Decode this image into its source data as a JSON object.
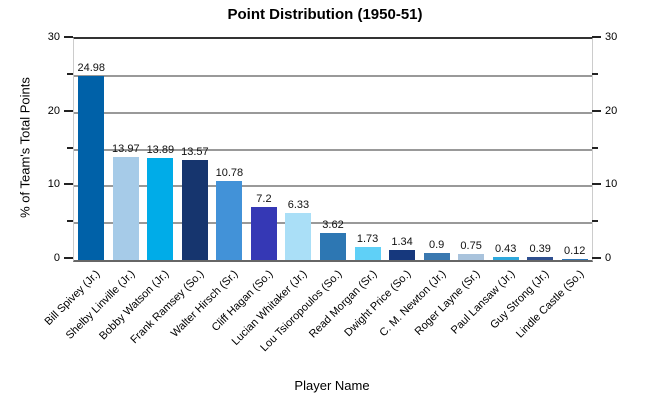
{
  "chart_data": {
    "type": "bar",
    "title": "Point Distribution (1950-51)",
    "xlabel": "Player Name",
    "ylabel": "% of Team's Total Points",
    "ylim": [
      0,
      30
    ],
    "ytick_step": 5,
    "ytick_labeled": [
      0,
      10,
      20,
      30
    ],
    "ytick_minor": [
      5,
      15,
      25
    ],
    "y_axis_sides": [
      "left",
      "right"
    ],
    "grid": true,
    "legend": false,
    "value_labels_shown": true,
    "categories": [
      "Bill Spivey (Jr.)",
      "Shelby Linville (Jr.)",
      "Bobby Watson (Jr.)",
      "Frank Ramsey (So.)",
      "Walter Hirsch (Sr.)",
      "Cliff Hagan (So.)",
      "Lucian Whitaker (Jr.)",
      "Lou Tsioropoulos (So.)",
      "Read Morgan (Sr.)",
      "Dwight Price (So.)",
      "C. M. Newton (Jr.)",
      "Roger Layne (Sr.)",
      "Paul Lansaw (Jr.)",
      "Guy Strong (Jr.)",
      "Lindle Castle (So.)"
    ],
    "values": [
      24.98,
      13.97,
      13.89,
      13.57,
      10.78,
      7.2,
      6.33,
      3.62,
      1.73,
      1.34,
      0.9,
      0.75,
      0.43,
      0.39,
      0.12
    ],
    "bar_colors": [
      "#0061a8",
      "#a6cbe8",
      "#00ace8",
      "#16356e",
      "#4292d8",
      "#3538b5",
      "#aadff7",
      "#2d77b3",
      "#5fd0f7",
      "#16387d",
      "#3a78b0",
      "#a9c3dc",
      "#2fa9dd",
      "#2f4f8f",
      "#2e75b6"
    ],
    "style_colors": {
      "gridline": "#999999",
      "top_border": "#333333",
      "bottom_axis": "#666666",
      "plot_side_border": "#cccccc",
      "tick": "#222222",
      "text": "#000000"
    }
  }
}
